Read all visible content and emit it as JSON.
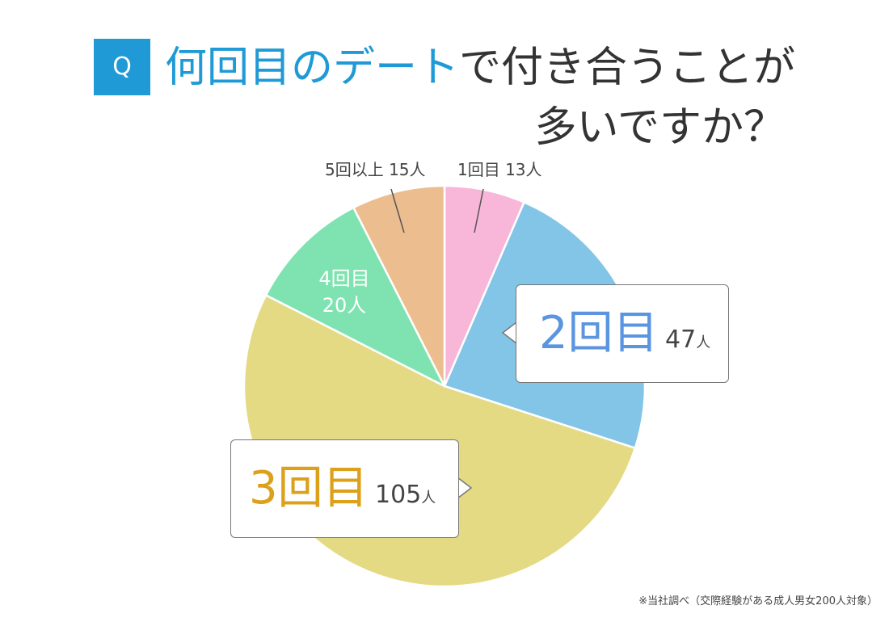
{
  "title": {
    "badge": "Q",
    "line1_highlight": "何回目のデート",
    "line1_rest": "で付き合うことが",
    "line2": "多いですか？"
  },
  "chart_data": {
    "type": "pie",
    "start": "top",
    "direction": "clockwise",
    "slices": [
      {
        "label": "1回目",
        "value": 13,
        "unit": "人",
        "color": "#f8b6d8"
      },
      {
        "label": "2回目",
        "value": 47,
        "unit": "人",
        "color": "#82c5e6"
      },
      {
        "label": "3回目",
        "value": 105,
        "unit": "人",
        "color": "#e4da84"
      },
      {
        "label": "4回目",
        "value": 20,
        "unit": "人",
        "color": "#7ee3b1"
      },
      {
        "label": "5回以上",
        "value": 15,
        "unit": "人",
        "color": "#ebbd8f"
      }
    ],
    "total": 200
  },
  "labels": {
    "slice1": "1回目 13人",
    "slice5": "5回以上 15人",
    "slice4_line1": "4回目",
    "slice4_line2": "20人",
    "callout2_big": "2回目",
    "callout2_count": "47",
    "callout2_unit": "人",
    "callout3_big": "3回目",
    "callout3_count": "105",
    "callout3_unit": "人"
  },
  "colors": {
    "accent": "#1f9ad6",
    "callout2_text": "#5b95e0",
    "callout3_text": "#dca01a",
    "slice4_text": "#ffffff"
  },
  "footnote": "※当社調べ（交際経験がある成人男女200人対象）"
}
